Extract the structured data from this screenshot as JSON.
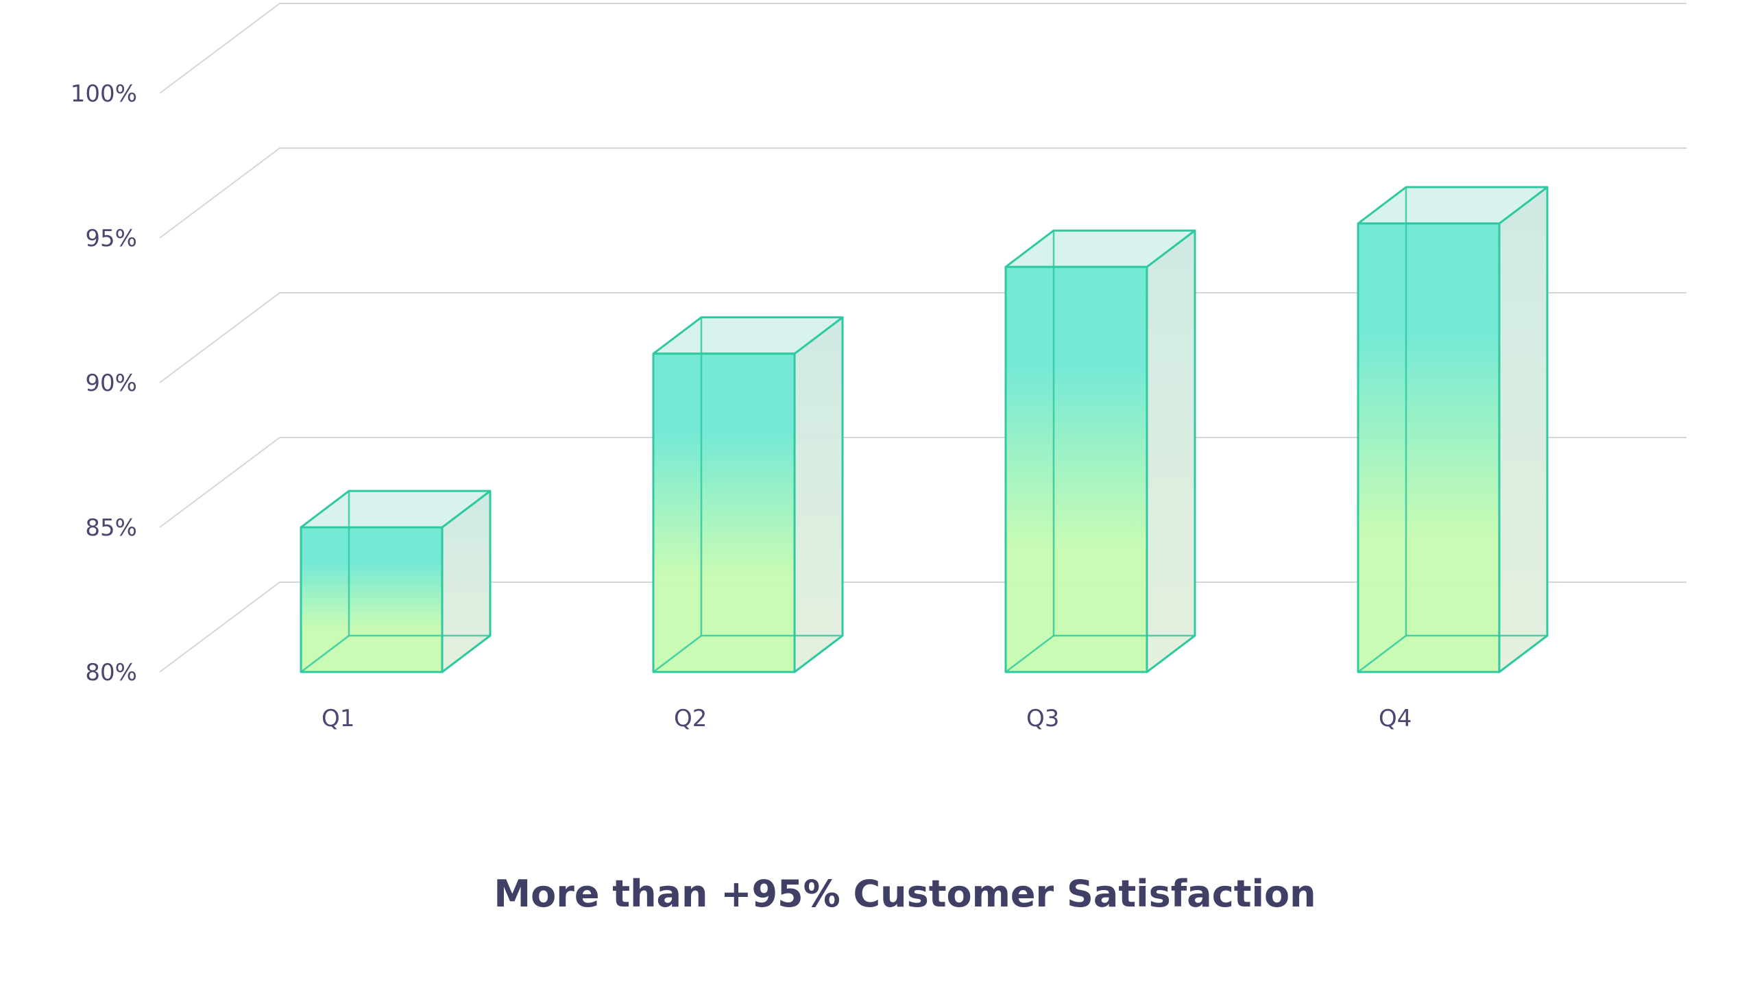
{
  "chart_data": {
    "type": "bar",
    "title": "More than +95% Customer Satisfaction",
    "xlabel": "",
    "ylabel": "",
    "categories": [
      "Q1",
      "Q2",
      "Q3",
      "Q4"
    ],
    "values": [
      85,
      91,
      94,
      95.5
    ],
    "ylim": [
      80,
      100
    ],
    "yticks": [
      80,
      85,
      90,
      95,
      100
    ],
    "ytick_labels": [
      "80%",
      "85%",
      "90%",
      "95%",
      "100%"
    ],
    "grid": true,
    "legend": "none",
    "colors": {
      "bar_top": "#6fe8d3",
      "bar_bottom": "#c6fbb0",
      "bar_edge": "#2ec9a0",
      "side_face": "#cfe8df",
      "top_face": "#d8f3ee",
      "grid": "#d6d6d6",
      "text": "#4a4870",
      "title": "#403f66"
    }
  }
}
